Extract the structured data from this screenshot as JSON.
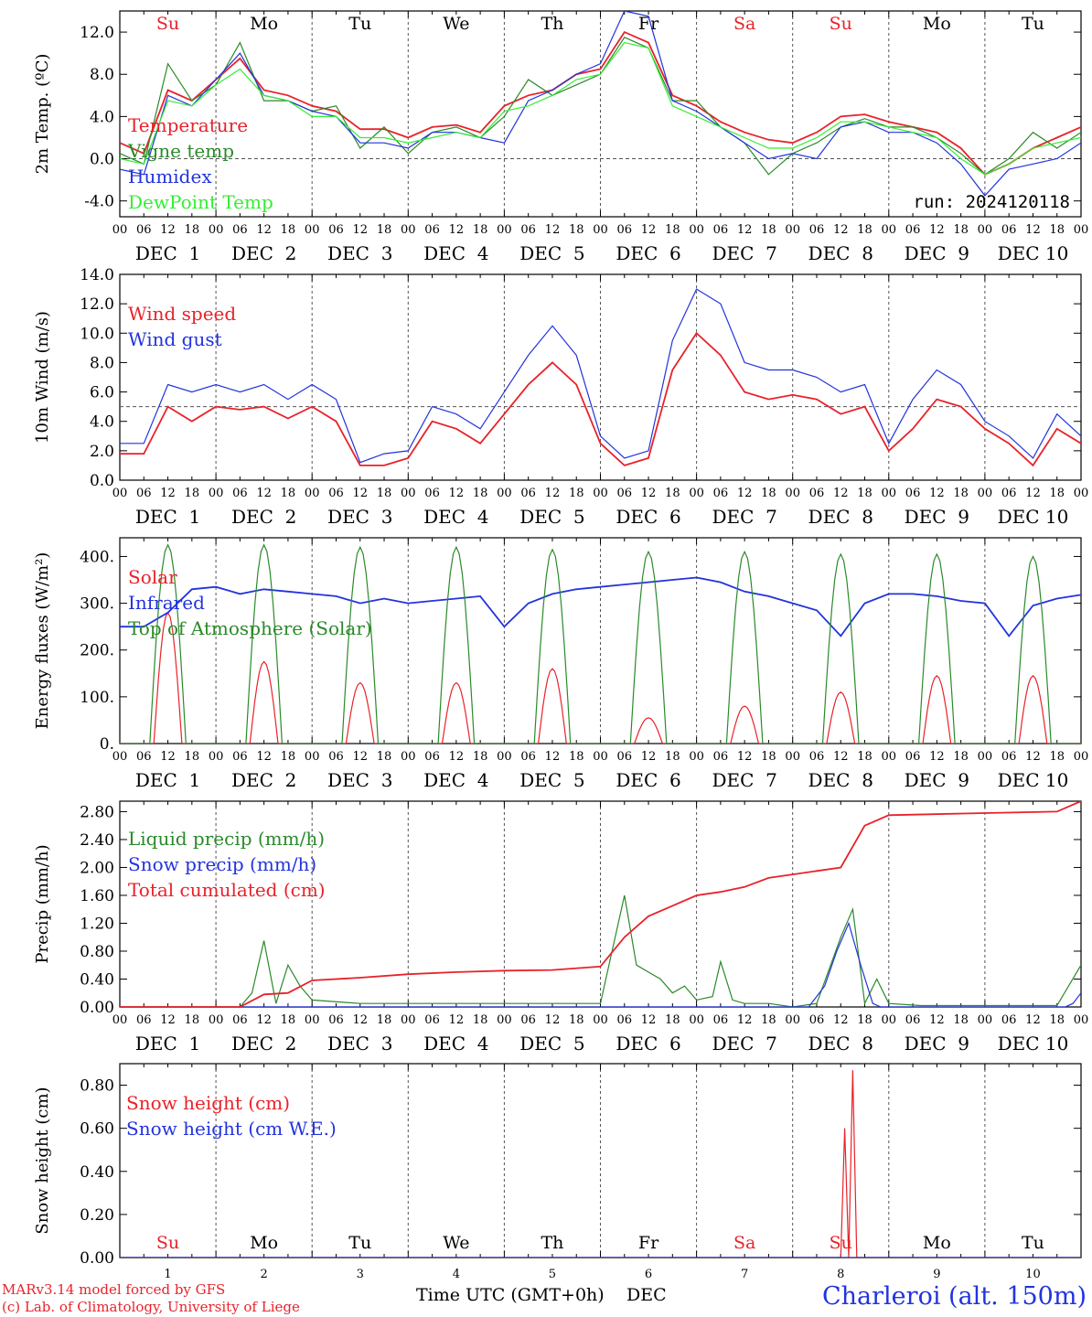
{
  "footer": {
    "model": "MARv3.14 model forced by GFS",
    "copyright": "(c) Lab. of Climatology, University of Liege",
    "station": "Charleroi (alt. 150m)",
    "xtitle": "Time UTC (GMT+0h)",
    "xtitle_unit": "DEC"
  },
  "axis": {
    "hour_ticks": [
      "00",
      "06",
      "12",
      "18"
    ],
    "end_tick": "00",
    "day_labels": [
      "DEC  1",
      "DEC  2",
      "DEC  3",
      "DEC  4",
      "DEC  5",
      "DEC  6",
      "DEC  7",
      "DEC  8",
      "DEC  9",
      "DEC 10"
    ],
    "weekdays": [
      "Su",
      "Mo",
      "Tu",
      "We",
      "Th",
      "Fr",
      "Sa",
      "Su",
      "Mo",
      "Tu"
    ],
    "weekday_colors": [
      "#e8222a",
      "#000000",
      "#000000",
      "#000000",
      "#000000",
      "#000000",
      "#e8222a",
      "#e8222a",
      "#000000",
      "#000000"
    ],
    "day_numbers": [
      "1",
      "2",
      "3",
      "4",
      "5",
      "6",
      "7",
      "8",
      "9",
      "10"
    ]
  },
  "colors": {
    "red": "#e8222a",
    "dark_green": "#2a8a2a",
    "blue": "#2233dd",
    "light_green": "#33ee33",
    "grid": "#555555"
  },
  "chart_data": [
    {
      "type": "line",
      "ylabel": "2m Temp. (ºC)",
      "ylim": [
        -5.5,
        14
      ],
      "yticks": [
        -4,
        0,
        4,
        8,
        12
      ],
      "ytick_labels": [
        "-4.0",
        "0.0",
        "4.0",
        "8.0",
        "12.0"
      ],
      "hline": 0,
      "annotation": "run: 2024120118",
      "x_unit": "hours since DEC 1 00 UTC",
      "series": [
        {
          "name": "Temperature",
          "color": "#e8222a",
          "x": [
            0,
            6,
            12,
            18,
            24,
            30,
            36,
            42,
            48,
            54,
            60,
            66,
            72,
            78,
            84,
            90,
            96,
            102,
            108,
            114,
            120,
            126,
            132,
            138,
            144,
            150,
            156,
            162,
            168,
            174,
            180,
            186,
            192,
            198,
            204,
            210,
            216,
            222,
            228,
            234,
            240
          ],
          "y": [
            1.5,
            0.5,
            6.5,
            5.5,
            7.5,
            9.5,
            6.5,
            6.0,
            5.0,
            4.5,
            2.8,
            2.8,
            2.0,
            3.0,
            3.2,
            2.5,
            5.0,
            6.0,
            6.5,
            8.0,
            8.5,
            12.0,
            11.0,
            6.0,
            5.0,
            3.5,
            2.5,
            1.8,
            1.5,
            2.5,
            4.0,
            4.2,
            3.5,
            3.0,
            2.5,
            1.0,
            -1.5,
            -0.5,
            1.0,
            2.0,
            3.0
          ]
        },
        {
          "name": "Vigne temp",
          "color": "#2a8a2a",
          "x": [
            0,
            6,
            12,
            18,
            24,
            30,
            36,
            42,
            48,
            54,
            60,
            66,
            72,
            78,
            84,
            90,
            96,
            102,
            108,
            114,
            120,
            126,
            132,
            138,
            144,
            150,
            156,
            162,
            168,
            174,
            180,
            186,
            192,
            198,
            204,
            210,
            216,
            222,
            228,
            234,
            240
          ],
          "y": [
            0.5,
            -0.5,
            9.0,
            5.5,
            7.0,
            11.0,
            5.5,
            5.5,
            4.5,
            5.0,
            1.0,
            3.0,
            0.5,
            2.5,
            3.0,
            2.0,
            4.0,
            7.5,
            6.0,
            7.0,
            8.0,
            11.5,
            10.5,
            5.5,
            5.5,
            3.0,
            1.5,
            -1.5,
            0.5,
            1.5,
            3.0,
            3.8,
            3.0,
            3.0,
            2.0,
            0.5,
            -1.5,
            0.0,
            2.5,
            1.0,
            2.5
          ]
        },
        {
          "name": "Humidex",
          "color": "#2233dd",
          "x": [
            0,
            6,
            12,
            18,
            24,
            30,
            36,
            42,
            48,
            54,
            60,
            66,
            72,
            78,
            84,
            90,
            96,
            102,
            108,
            114,
            120,
            126,
            132,
            138,
            144,
            150,
            156,
            162,
            168,
            174,
            180,
            186,
            192,
            198,
            204,
            210,
            216,
            222,
            228,
            234,
            240
          ],
          "y": [
            -1.0,
            -1.5,
            6.0,
            5.0,
            7.5,
            10.0,
            6.0,
            5.5,
            4.5,
            4.0,
            1.5,
            1.5,
            1.0,
            2.5,
            2.5,
            2.0,
            1.5,
            5.5,
            6.5,
            8.0,
            9.0,
            14.0,
            13.5,
            5.5,
            4.5,
            3.0,
            1.5,
            0.0,
            0.5,
            0.0,
            3.0,
            3.5,
            2.5,
            2.5,
            1.5,
            -0.5,
            -3.5,
            -1.0,
            -0.5,
            0.0,
            1.5
          ]
        },
        {
          "name": "DewPoint Temp",
          "color": "#33ee33",
          "x": [
            0,
            6,
            12,
            18,
            24,
            30,
            36,
            42,
            48,
            54,
            60,
            66,
            72,
            78,
            84,
            90,
            96,
            102,
            108,
            114,
            120,
            126,
            132,
            138,
            144,
            150,
            156,
            162,
            168,
            174,
            180,
            186,
            192,
            198,
            204,
            210,
            216,
            222,
            228,
            234,
            240
          ],
          "y": [
            0.0,
            -0.5,
            5.5,
            5.0,
            7.0,
            8.5,
            6.0,
            5.5,
            4.0,
            4.0,
            2.0,
            2.0,
            1.5,
            2.0,
            2.5,
            2.0,
            4.5,
            5.0,
            6.0,
            7.5,
            8.0,
            11.0,
            10.5,
            5.0,
            4.0,
            3.0,
            2.0,
            1.0,
            1.0,
            2.0,
            3.5,
            3.5,
            3.0,
            2.5,
            2.0,
            0.0,
            -1.5,
            -0.5,
            1.0,
            1.5,
            2.0
          ]
        }
      ]
    },
    {
      "type": "line",
      "ylabel": "10m Wind (m/s)",
      "ylim": [
        0,
        14
      ],
      "yticks": [
        0,
        2,
        4,
        6,
        8,
        10,
        12,
        14
      ],
      "ytick_labels": [
        "0.0",
        "2.0",
        "4.0",
        "6.0",
        "8.0",
        "10.0",
        "12.0",
        "14.0"
      ],
      "hline": 5,
      "x_unit": "hours since DEC 1 00 UTC",
      "series": [
        {
          "name": "Wind speed",
          "color": "#e8222a",
          "x": [
            0,
            6,
            12,
            18,
            24,
            30,
            36,
            42,
            48,
            54,
            60,
            66,
            72,
            78,
            84,
            90,
            96,
            102,
            108,
            114,
            120,
            126,
            132,
            138,
            144,
            150,
            156,
            162,
            168,
            174,
            180,
            186,
            192,
            198,
            204,
            210,
            216,
            222,
            228,
            234,
            240
          ],
          "y": [
            1.8,
            1.8,
            5.0,
            4.0,
            5.0,
            4.8,
            5.0,
            4.2,
            5.0,
            4.0,
            1.0,
            1.0,
            1.5,
            4.0,
            3.5,
            2.5,
            4.5,
            6.5,
            8.0,
            6.5,
            2.5,
            1.0,
            1.5,
            7.5,
            10.0,
            8.5,
            6.0,
            5.5,
            5.8,
            5.5,
            4.5,
            5.0,
            2.0,
            3.5,
            5.5,
            5.0,
            3.5,
            2.5,
            1.0,
            3.5,
            2.5
          ]
        },
        {
          "name": "Wind gust",
          "color": "#2233dd",
          "x": [
            0,
            6,
            12,
            18,
            24,
            30,
            36,
            42,
            48,
            54,
            60,
            66,
            72,
            78,
            84,
            90,
            96,
            102,
            108,
            114,
            120,
            126,
            132,
            138,
            144,
            150,
            156,
            162,
            168,
            174,
            180,
            186,
            192,
            198,
            204,
            210,
            216,
            222,
            228,
            234,
            240
          ],
          "y": [
            2.5,
            2.5,
            6.5,
            6.0,
            6.5,
            6.0,
            6.5,
            5.5,
            6.5,
            5.5,
            1.2,
            1.8,
            2.0,
            5.0,
            4.5,
            3.5,
            6.0,
            8.5,
            10.5,
            8.5,
            3.0,
            1.5,
            2.0,
            9.5,
            13.0,
            12.0,
            8.0,
            7.5,
            7.5,
            7.0,
            6.0,
            6.5,
            2.5,
            5.5,
            7.5,
            6.5,
            4.0,
            3.0,
            1.5,
            4.5,
            3.0
          ]
        }
      ]
    },
    {
      "type": "line",
      "ylabel": "Energy fluxes (W/m²)",
      "ylim": [
        0,
        440
      ],
      "yticks": [
        0,
        100,
        200,
        300,
        400
      ],
      "ytick_labels": [
        "0.",
        "100.",
        "200.",
        "300.",
        "400."
      ],
      "x_unit": "hours since DEC 1 00 UTC",
      "series": [
        {
          "name": "Solar",
          "color": "#e8222a",
          "peaks": [
            280,
            175,
            130,
            130,
            160,
            55,
            80,
            110,
            145,
            145
          ]
        },
        {
          "name": "Infrared",
          "color": "#2233dd",
          "x": [
            0,
            6,
            12,
            18,
            24,
            30,
            36,
            42,
            48,
            54,
            60,
            66,
            72,
            78,
            84,
            90,
            96,
            102,
            108,
            114,
            120,
            126,
            132,
            138,
            144,
            150,
            156,
            162,
            168,
            174,
            180,
            186,
            192,
            198,
            204,
            210,
            216,
            222,
            228,
            234,
            240
          ],
          "y": [
            250,
            250,
            280,
            330,
            335,
            320,
            330,
            325,
            320,
            315,
            300,
            310,
            300,
            305,
            310,
            315,
            250,
            300,
            320,
            330,
            335,
            340,
            345,
            350,
            355,
            345,
            325,
            315,
            300,
            285,
            230,
            300,
            320,
            320,
            315,
            305,
            300,
            230,
            295,
            310,
            318
          ]
        },
        {
          "name": "Top of Atmosphere (Solar)",
          "color": "#2a8a2a",
          "peaks": [
            425,
            425,
            420,
            420,
            415,
            410,
            410,
            405,
            405,
            400
          ]
        }
      ]
    },
    {
      "type": "line",
      "ylabel": "Precip (mm/h)",
      "ylim": [
        0,
        2.95
      ],
      "yticks": [
        0,
        0.4,
        0.8,
        1.2,
        1.6,
        2.0,
        2.4,
        2.8
      ],
      "ytick_labels": [
        "0.00",
        "0.40",
        "0.80",
        "1.20",
        "1.60",
        "2.00",
        "2.40",
        "2.80"
      ],
      "x_unit": "hours since DEC 1 00 UTC",
      "series": [
        {
          "name": "Liquid precip (mm/h)",
          "color": "#2a8a2a",
          "x": [
            0,
            30,
            33,
            36,
            39,
            42,
            45,
            48,
            60,
            96,
            120,
            126,
            129,
            132,
            135,
            138,
            141,
            144,
            148,
            150,
            153,
            156,
            162,
            168,
            174,
            180,
            183,
            186,
            189,
            192,
            200,
            216,
            234,
            240
          ],
          "y": [
            0,
            0,
            0.2,
            0.95,
            0.05,
            0.6,
            0.3,
            0.1,
            0.05,
            0.05,
            0.05,
            1.6,
            0.6,
            0.5,
            0.4,
            0.2,
            0.3,
            0.1,
            0.15,
            0.65,
            0.1,
            0.05,
            0.05,
            0.0,
            0.05,
            1.0,
            1.4,
            0.05,
            0.4,
            0.05,
            0.02,
            0.02,
            0.02,
            0.6
          ]
        },
        {
          "name": "Snow precip (mm/h)",
          "color": "#2233dd",
          "x": [
            0,
            172,
            176,
            179,
            182,
            185,
            188,
            190,
            236,
            238,
            240
          ],
          "y": [
            0,
            0,
            0.3,
            0.8,
            1.2,
            0.6,
            0.05,
            0,
            0,
            0.05,
            0.2
          ]
        },
        {
          "name": "Total cumulated (cm)",
          "color": "#e8222a",
          "x": [
            0,
            30,
            36,
            42,
            48,
            60,
            72,
            84,
            96,
            108,
            120,
            126,
            132,
            138,
            144,
            150,
            156,
            162,
            168,
            174,
            180,
            186,
            188,
            192,
            216,
            234,
            240
          ],
          "y": [
            0,
            0,
            0.18,
            0.2,
            0.38,
            0.42,
            0.47,
            0.5,
            0.52,
            0.53,
            0.58,
            1.0,
            1.3,
            1.45,
            1.6,
            1.65,
            1.72,
            1.85,
            1.9,
            1.95,
            2.0,
            2.6,
            2.65,
            2.75,
            2.78,
            2.8,
            2.95
          ]
        }
      ]
    },
    {
      "type": "line",
      "ylabel": "Snow height (cm)",
      "ylim": [
        0,
        0.9
      ],
      "yticks": [
        0,
        0.2,
        0.4,
        0.6,
        0.8
      ],
      "ytick_labels": [
        "0.00",
        "0.20",
        "0.40",
        "0.60",
        "0.80"
      ],
      "x_unit": "hours since DEC 1 00 UTC",
      "series": [
        {
          "name": "Snow height (cm)",
          "color": "#e8222a",
          "x": [
            0,
            180,
            181,
            182,
            183,
            184,
            185,
            186,
            240
          ],
          "y": [
            0,
            0,
            0.6,
            0,
            0.87,
            0,
            0,
            0,
            0
          ]
        },
        {
          "name": "Snow height (cm W.E.)",
          "color": "#2233dd",
          "x": [
            0,
            240
          ],
          "y": [
            0,
            0
          ]
        }
      ]
    }
  ]
}
